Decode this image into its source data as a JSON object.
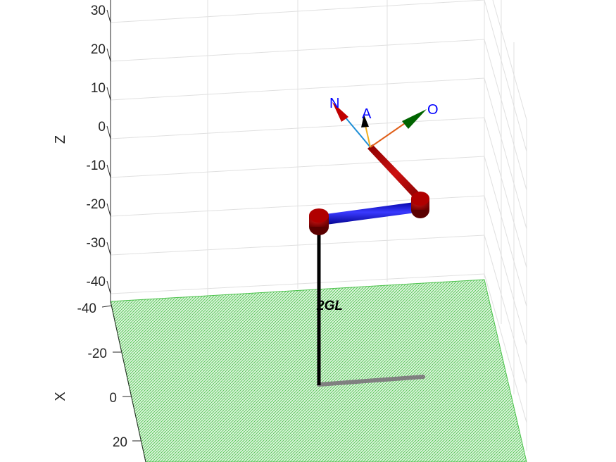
{
  "figure": {
    "z_axis": {
      "label": "Z",
      "ticks": [
        "30",
        "20",
        "10",
        "0",
        "-10",
        "-20",
        "-30",
        "-40"
      ]
    },
    "x_axis": {
      "label": "X",
      "ticks": [
        "-40",
        "-20",
        "0",
        "20"
      ]
    },
    "robot_name": "2GL",
    "frame_labels": {
      "n": "N",
      "o": "O",
      "a": "A"
    },
    "colors": {
      "floor": "#6fd46f",
      "link_red": "#b30000",
      "link_blue": "#1a1acc",
      "base_post": "#000000",
      "shadow": "#808080",
      "n_arrow": "#c00000",
      "o_arrow": "#006400",
      "a_arrow": "#000000",
      "label_blue": "#0000ff"
    }
  }
}
